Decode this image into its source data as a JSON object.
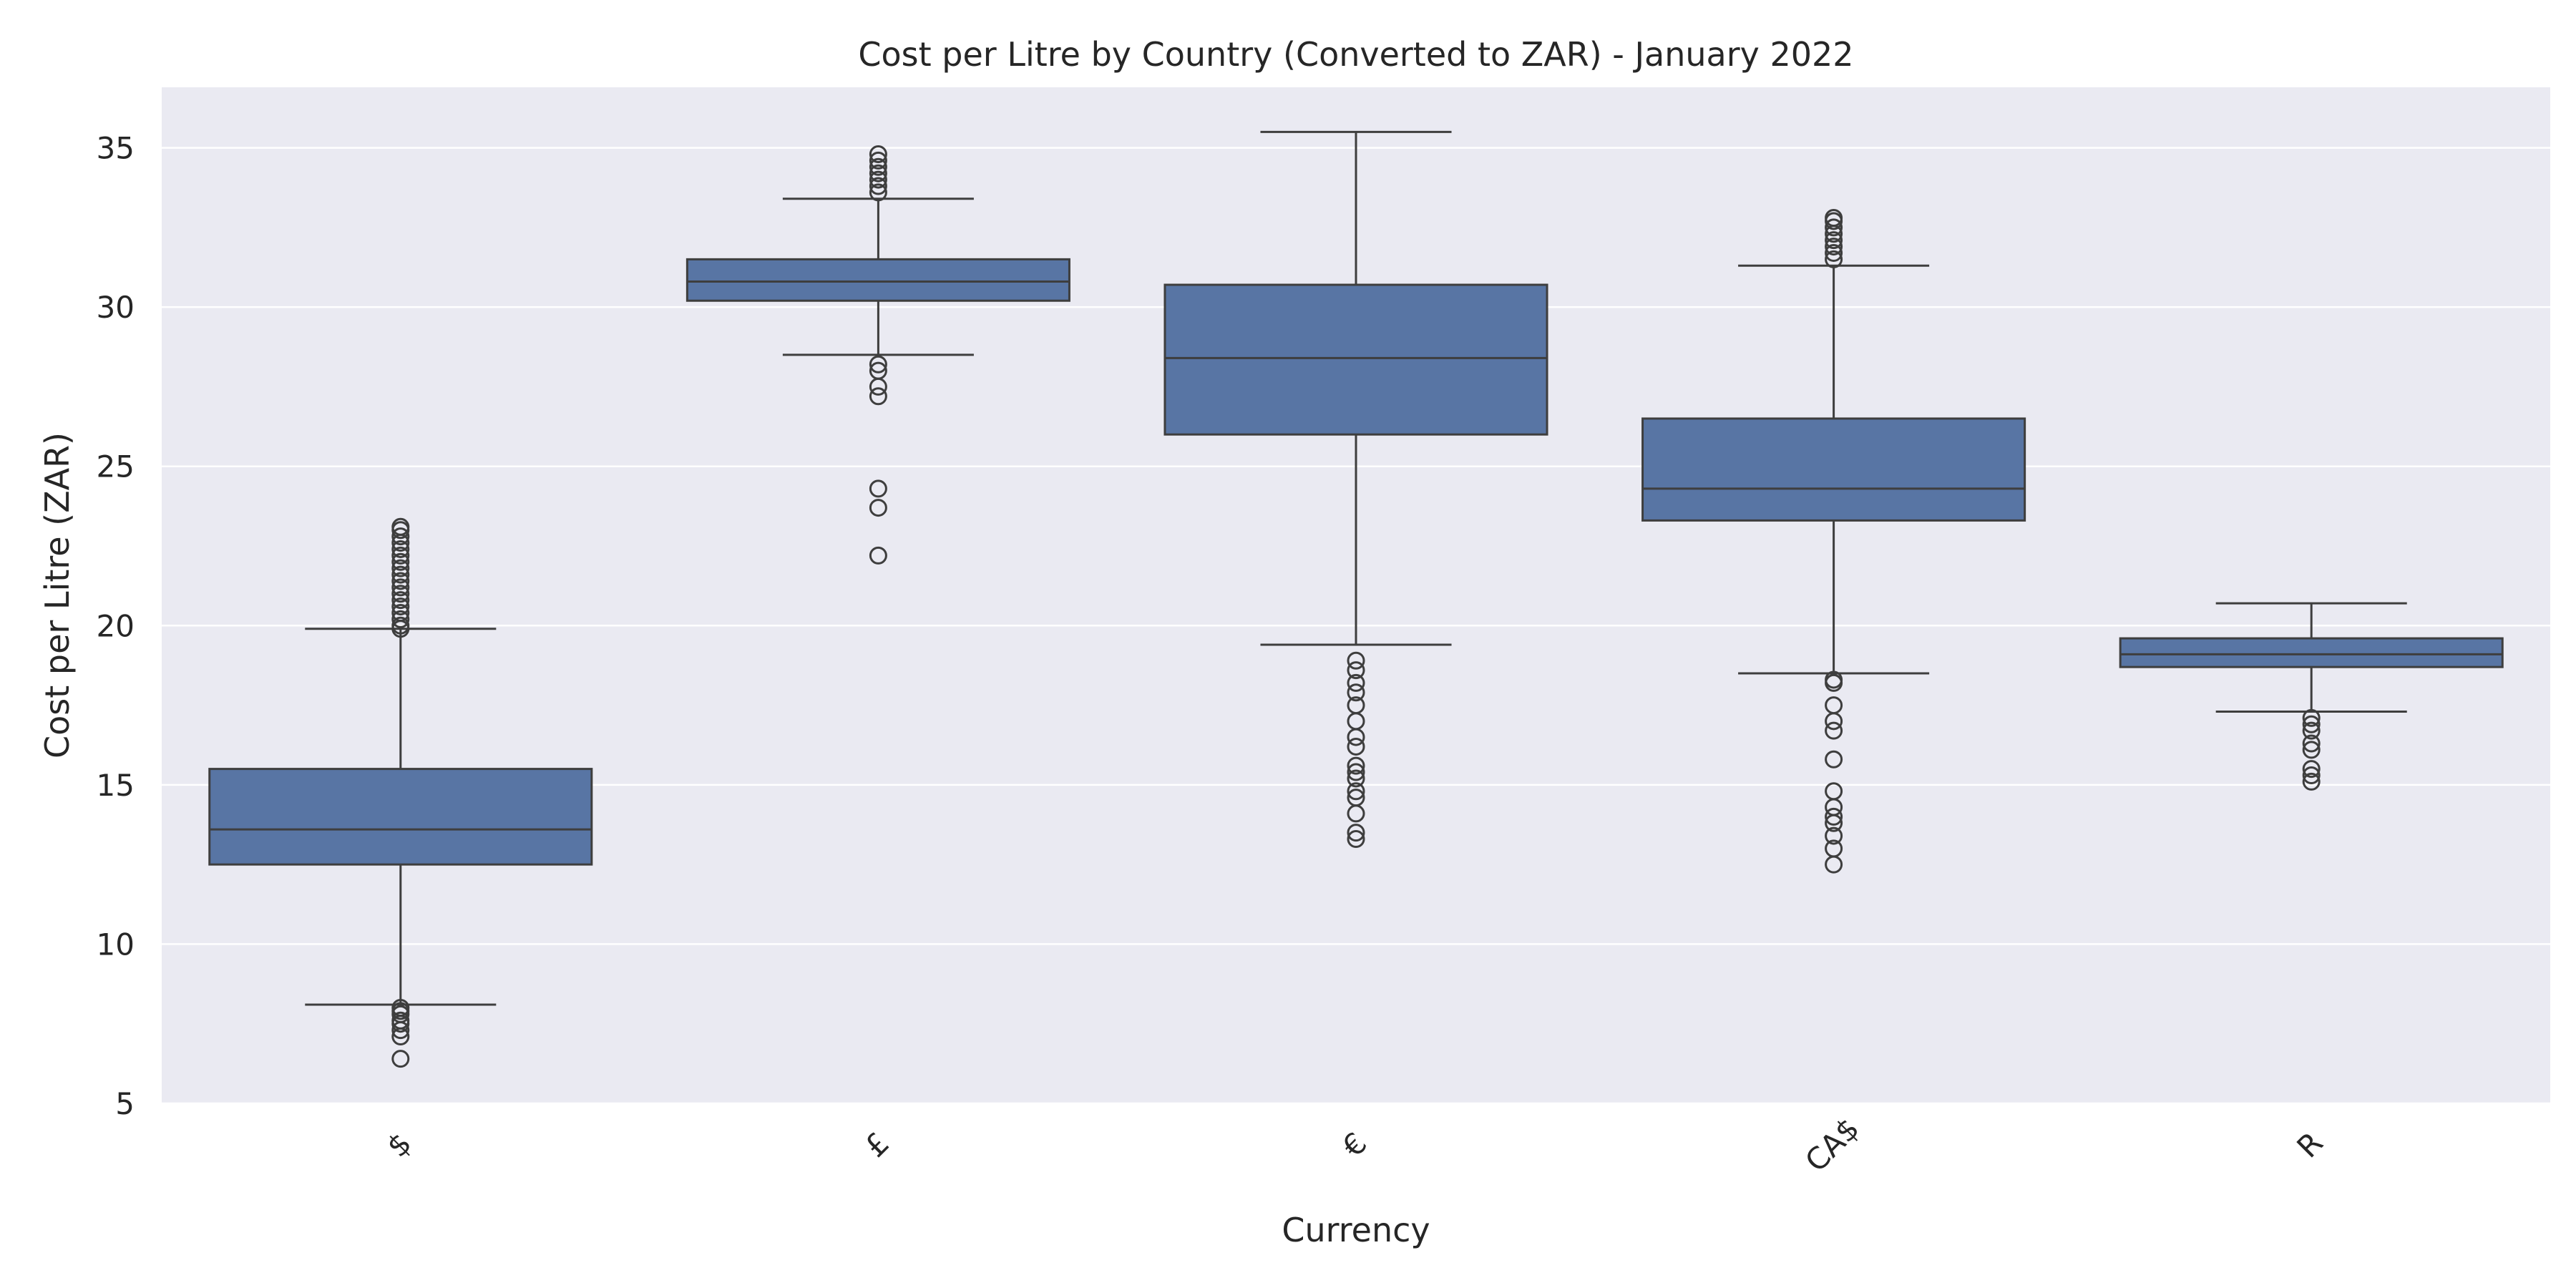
{
  "chart_data": {
    "type": "box",
    "title": "Cost per Litre by Country (Converted to ZAR) - January 2022",
    "xlabel": "Currency",
    "ylabel": "Cost per Litre (ZAR)",
    "ylim": [
      5,
      36.9
    ],
    "yticks": [
      5,
      10,
      15,
      20,
      25,
      30,
      35
    ],
    "grid": true,
    "categories": [
      "$",
      "£",
      "€",
      "CA$",
      "R"
    ],
    "boxes": [
      {
        "category": "$",
        "whisker_low": 8.1,
        "q1": 12.5,
        "median": 13.6,
        "q3": 15.5,
        "whisker_high": 19.9,
        "outliers": [
          6.4,
          7.1,
          7.3,
          7.5,
          7.6,
          7.8,
          7.9,
          8.0,
          19.9,
          20.0,
          20.2,
          20.4,
          20.6,
          20.8,
          21.0,
          21.2,
          21.4,
          21.6,
          21.8,
          22.0,
          22.2,
          22.4,
          22.6,
          22.8,
          23.0,
          23.1
        ]
      },
      {
        "category": "£",
        "whisker_low": 28.5,
        "q1": 30.2,
        "median": 30.8,
        "q3": 31.5,
        "whisker_high": 33.4,
        "outliers": [
          22.2,
          23.7,
          24.3,
          27.2,
          27.5,
          28.0,
          28.2,
          33.6,
          33.8,
          34.0,
          34.2,
          34.4,
          34.6,
          34.8
        ]
      },
      {
        "category": "€",
        "whisker_low": 19.4,
        "q1": 26.0,
        "median": 28.4,
        "q3": 30.7,
        "whisker_high": 35.5,
        "outliers": [
          13.3,
          13.5,
          14.1,
          14.6,
          14.8,
          15.2,
          15.4,
          15.6,
          16.2,
          16.5,
          17.0,
          17.5,
          17.9,
          18.2,
          18.6,
          18.9
        ]
      },
      {
        "category": "CA$",
        "whisker_low": 18.5,
        "q1": 23.3,
        "median": 24.3,
        "q3": 26.5,
        "whisker_high": 31.3,
        "outliers": [
          12.5,
          13.0,
          13.4,
          13.8,
          14.0,
          14.3,
          14.8,
          15.8,
          16.7,
          17.0,
          17.5,
          18.2,
          18.3,
          31.5,
          31.7,
          31.9,
          32.1,
          32.3,
          32.5,
          32.7,
          32.8
        ]
      },
      {
        "category": "R",
        "whisker_low": 17.3,
        "q1": 18.7,
        "median": 19.1,
        "q3": 19.6,
        "whisker_high": 20.7,
        "outliers": [
          15.1,
          15.3,
          15.5,
          16.1,
          16.3,
          16.7,
          16.9,
          17.1
        ]
      }
    ],
    "colors": {
      "plot_background": "#eaeaf2",
      "gridline": "#ffffff",
      "box_fill": "#5875a4",
      "box_edge": "#3e3e3e",
      "text": "#262626"
    }
  }
}
